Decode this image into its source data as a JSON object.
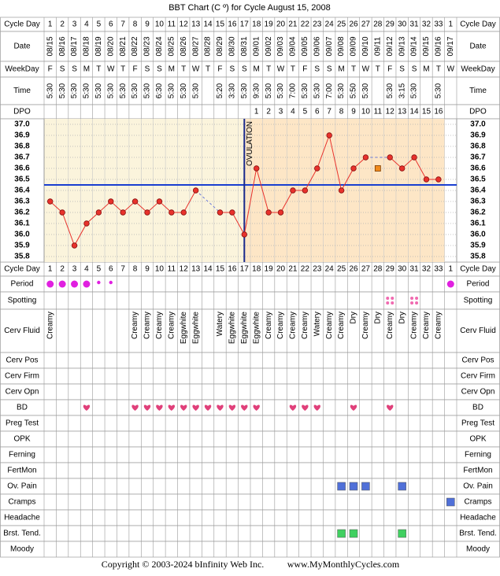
{
  "chart_data": {
    "type": "line",
    "title": "BBT Chart (C º) for Cycle August 15, 2008",
    "row_labels_top": [
      "Cycle Day",
      "Date",
      "WeekDay",
      "Time",
      "DPO"
    ],
    "row_labels_bottom": [
      "Cycle Day",
      "Period",
      "Spotting",
      "Cerv Fluid",
      "Cerv Pos",
      "Cerv Firm",
      "Cerv Opn",
      "BD",
      "Preg Test",
      "OPK",
      "Ferning",
      "FertMon",
      "Ov. Pain",
      "Cramps",
      "Headache",
      "Brst. Tend.",
      "Moody"
    ],
    "cycle_days": [
      1,
      2,
      3,
      4,
      5,
      6,
      7,
      8,
      9,
      10,
      11,
      12,
      13,
      14,
      15,
      16,
      17,
      18,
      19,
      20,
      21,
      22,
      23,
      24,
      25,
      26,
      27,
      28,
      29,
      30,
      31,
      32,
      33,
      1
    ],
    "categories": [
      "08/15",
      "08/16",
      "08/17",
      "08/18",
      "08/19",
      "08/20",
      "08/21",
      "08/22",
      "08/23",
      "08/24",
      "08/25",
      "08/26",
      "08/27",
      "08/28",
      "08/29",
      "08/30",
      "08/31",
      "09/01",
      "09/02",
      "09/03",
      "09/04",
      "09/05",
      "09/06",
      "09/07",
      "09/08",
      "09/09",
      "09/10",
      "09/11",
      "09/12",
      "09/13",
      "09/14",
      "09/15",
      "09/16",
      "09/17"
    ],
    "weekdays": [
      "F",
      "S",
      "S",
      "M",
      "T",
      "W",
      "T",
      "F",
      "S",
      "S",
      "M",
      "T",
      "W",
      "T",
      "F",
      "S",
      "S",
      "M",
      "T",
      "W",
      "T",
      "F",
      "S",
      "S",
      "M",
      "T",
      "W",
      "T",
      "F",
      "S",
      "S",
      "M",
      "T",
      "W"
    ],
    "times": [
      "5:30",
      "5:30",
      "5:30",
      "5:30",
      "5:30",
      "5:30",
      "5:30",
      "5:30",
      "5:30",
      "6:30",
      "5:30",
      "5:30",
      "5:30",
      null,
      "5:20",
      "3:30",
      "5:30",
      "9:30",
      "5:30",
      "5:30",
      "7:00",
      "5:30",
      "5:30",
      "7:00",
      "5:30",
      "5:50",
      "5:30",
      null,
      "5:30",
      "3:15",
      "5:30",
      null,
      "5:30",
      null
    ],
    "dpo": [
      null,
      null,
      null,
      null,
      null,
      null,
      null,
      null,
      null,
      null,
      null,
      null,
      null,
      null,
      null,
      null,
      null,
      1,
      2,
      3,
      4,
      5,
      6,
      7,
      8,
      9,
      10,
      11,
      12,
      13,
      14,
      15,
      16,
      null
    ],
    "series": [
      {
        "color": "#e8322c",
        "values": [
          36.3,
          36.2,
          35.9,
          36.1,
          36.2,
          36.3,
          36.2,
          36.3,
          36.2,
          36.3,
          36.2,
          36.2,
          36.4,
          null,
          36.2,
          36.2,
          36.0,
          36.6,
          36.2,
          36.2,
          36.4,
          36.4,
          36.6,
          36.9,
          36.4,
          36.6,
          36.7,
          null,
          36.7,
          36.6,
          36.7,
          36.5,
          36.5,
          null
        ]
      }
    ],
    "discarded_temperatures": {
      "color": "#f08a1c",
      "values": [
        null,
        null,
        null,
        null,
        null,
        null,
        null,
        null,
        null,
        null,
        null,
        null,
        null,
        null,
        null,
        null,
        null,
        null,
        null,
        null,
        null,
        null,
        null,
        null,
        null,
        null,
        null,
        36.6,
        null,
        null,
        null,
        null,
        null,
        null
      ]
    },
    "ylim": [
      35.75,
      37.05
    ],
    "yticks": [
      {
        "value": 37,
        "label": "37.0"
      },
      36.9,
      36.8,
      36.7,
      36.6,
      36.5,
      36.4,
      36.3,
      36.2,
      36.1,
      {
        "value": 36,
        "label": "36.0"
      },
      35.9,
      35.8
    ],
    "coverline": 36.45,
    "ovulation_label": "OVULATION",
    "ovulation_day_index": 16,
    "period_heavy_days": [
      0,
      1,
      2,
      3,
      33
    ],
    "period_light_days": [
      4,
      5
    ],
    "spotting_days": [
      28,
      30
    ],
    "cerv_fluid": [
      "Creamy",
      null,
      null,
      null,
      null,
      null,
      null,
      "Creamy",
      "Creamy",
      "Creamy",
      "Creamy",
      "Eggwhite",
      "Eggwhite",
      null,
      "Watery",
      "Eggwhite",
      "Eggwhite",
      "Eggwhite",
      "Creamy",
      "Creamy",
      "Creamy",
      "Creamy",
      "Watery",
      "Creamy",
      "Creamy",
      "Dry",
      "Creamy",
      "Dry",
      "Creamy",
      "Dry",
      "Creamy",
      "Creamy",
      "Creamy",
      null
    ],
    "bd_days": [
      3,
      7,
      8,
      9,
      10,
      11,
      12,
      13,
      14,
      15,
      16,
      17,
      20,
      21,
      22,
      25,
      28
    ],
    "ov_pain_days": [
      24,
      25,
      26,
      29
    ],
    "cramps_days": [
      33
    ],
    "brst_tend_days": [
      24,
      25,
      29
    ],
    "copyright": "Copyright © 2003-2024 bInfinity Web Inc.",
    "website": "www.MyMonthlyCycles.com"
  }
}
